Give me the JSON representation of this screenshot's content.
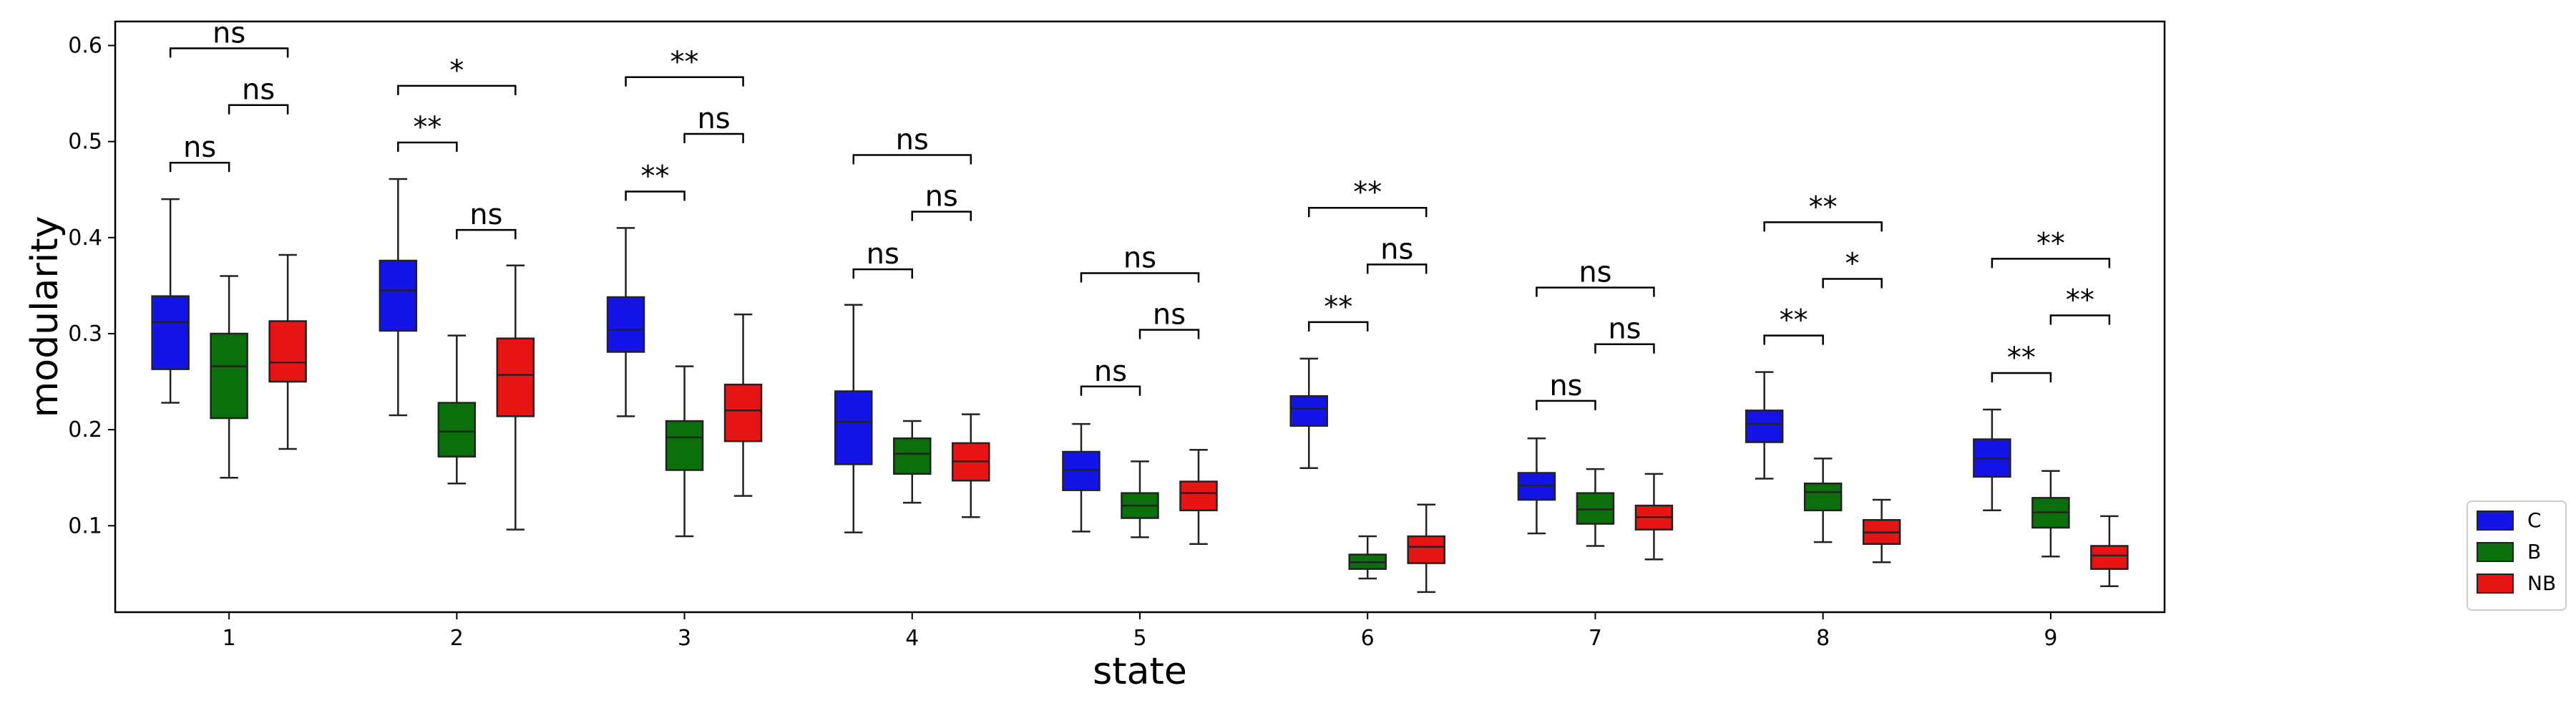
{
  "chart_data": {
    "type": "box",
    "xlabel": "state",
    "ylabel": "modularity",
    "categories": [
      "1",
      "2",
      "3",
      "4",
      "5",
      "6",
      "7",
      "8",
      "9"
    ],
    "ylim": [
      0.01,
      0.625
    ],
    "yticks": [
      "0.1",
      "0.2",
      "0.3",
      "0.4",
      "0.5",
      "0.6"
    ],
    "grid": false,
    "legend_position": "outside-lower-right",
    "series": [
      {
        "name": "C",
        "color": "#1414e6",
        "boxes": [
          {
            "min": 0.228,
            "q1": 0.263,
            "median": 0.312,
            "q3": 0.339,
            "max": 0.44
          },
          {
            "min": 0.215,
            "q1": 0.303,
            "median": 0.345,
            "q3": 0.376,
            "max": 0.461
          },
          {
            "min": 0.214,
            "q1": 0.281,
            "median": 0.304,
            "q3": 0.338,
            "max": 0.41
          },
          {
            "min": 0.093,
            "q1": 0.164,
            "median": 0.208,
            "q3": 0.24,
            "max": 0.33
          },
          {
            "min": 0.094,
            "q1": 0.137,
            "median": 0.158,
            "q3": 0.177,
            "max": 0.206
          },
          {
            "min": 0.16,
            "q1": 0.204,
            "median": 0.222,
            "q3": 0.235,
            "max": 0.274
          },
          {
            "min": 0.092,
            "q1": 0.127,
            "median": 0.142,
            "q3": 0.155,
            "max": 0.191
          },
          {
            "min": 0.149,
            "q1": 0.187,
            "median": 0.206,
            "q3": 0.22,
            "max": 0.26
          },
          {
            "min": 0.116,
            "q1": 0.151,
            "median": 0.17,
            "q3": 0.19,
            "max": 0.221
          }
        ]
      },
      {
        "name": "B",
        "color": "#0b700b",
        "boxes": [
          {
            "min": 0.15,
            "q1": 0.212,
            "median": 0.266,
            "q3": 0.3,
            "max": 0.36
          },
          {
            "min": 0.144,
            "q1": 0.172,
            "median": 0.198,
            "q3": 0.228,
            "max": 0.298
          },
          {
            "min": 0.089,
            "q1": 0.158,
            "median": 0.192,
            "q3": 0.209,
            "max": 0.266
          },
          {
            "min": 0.124,
            "q1": 0.154,
            "median": 0.175,
            "q3": 0.191,
            "max": 0.209
          },
          {
            "min": 0.088,
            "q1": 0.108,
            "median": 0.121,
            "q3": 0.134,
            "max": 0.167
          },
          {
            "min": 0.045,
            "q1": 0.055,
            "median": 0.062,
            "q3": 0.07,
            "max": 0.089
          },
          {
            "min": 0.079,
            "q1": 0.102,
            "median": 0.117,
            "q3": 0.134,
            "max": 0.159
          },
          {
            "min": 0.083,
            "q1": 0.116,
            "median": 0.135,
            "q3": 0.144,
            "max": 0.17
          },
          {
            "min": 0.068,
            "q1": 0.098,
            "median": 0.114,
            "q3": 0.129,
            "max": 0.157
          }
        ]
      },
      {
        "name": "NB",
        "color": "#e61414",
        "boxes": [
          {
            "min": 0.18,
            "q1": 0.25,
            "median": 0.27,
            "q3": 0.313,
            "max": 0.382
          },
          {
            "min": 0.096,
            "q1": 0.214,
            "median": 0.257,
            "q3": 0.295,
            "max": 0.371
          },
          {
            "min": 0.131,
            "q1": 0.188,
            "median": 0.22,
            "q3": 0.247,
            "max": 0.32
          },
          {
            "min": 0.109,
            "q1": 0.147,
            "median": 0.167,
            "q3": 0.186,
            "max": 0.216
          },
          {
            "min": 0.081,
            "q1": 0.116,
            "median": 0.134,
            "q3": 0.146,
            "max": 0.179
          },
          {
            "min": 0.031,
            "q1": 0.061,
            "median": 0.078,
            "q3": 0.089,
            "max": 0.122
          },
          {
            "min": 0.065,
            "q1": 0.096,
            "median": 0.109,
            "q3": 0.121,
            "max": 0.154
          },
          {
            "min": 0.062,
            "q1": 0.081,
            "median": 0.093,
            "q3": 0.106,
            "max": 0.127
          },
          {
            "min": 0.037,
            "q1": 0.055,
            "median": 0.069,
            "q3": 0.079,
            "max": 0.11
          }
        ]
      }
    ],
    "annotations": [
      {
        "state": 1,
        "from": "C",
        "to": "B",
        "y": 0.478,
        "label": "ns"
      },
      {
        "state": 1,
        "from": "B",
        "to": "NB",
        "y": 0.538,
        "label": "ns"
      },
      {
        "state": 1,
        "from": "C",
        "to": "NB",
        "y": 0.597,
        "label": "ns"
      },
      {
        "state": 2,
        "from": "C",
        "to": "B",
        "y": 0.499,
        "label": "**"
      },
      {
        "state": 2,
        "from": "B",
        "to": "NB",
        "y": 0.408,
        "label": "ns"
      },
      {
        "state": 2,
        "from": "C",
        "to": "NB",
        "y": 0.558,
        "label": "*"
      },
      {
        "state": 3,
        "from": "C",
        "to": "B",
        "y": 0.448,
        "label": "**"
      },
      {
        "state": 3,
        "from": "B",
        "to": "NB",
        "y": 0.508,
        "label": "ns"
      },
      {
        "state": 3,
        "from": "C",
        "to": "NB",
        "y": 0.567,
        "label": "**"
      },
      {
        "state": 4,
        "from": "C",
        "to": "B",
        "y": 0.367,
        "label": "ns"
      },
      {
        "state": 4,
        "from": "B",
        "to": "NB",
        "y": 0.427,
        "label": "ns"
      },
      {
        "state": 4,
        "from": "C",
        "to": "NB",
        "y": 0.486,
        "label": "ns"
      },
      {
        "state": 5,
        "from": "C",
        "to": "B",
        "y": 0.245,
        "label": "ns"
      },
      {
        "state": 5,
        "from": "B",
        "to": "NB",
        "y": 0.304,
        "label": "ns"
      },
      {
        "state": 5,
        "from": "C",
        "to": "NB",
        "y": 0.363,
        "label": "ns"
      },
      {
        "state": 6,
        "from": "C",
        "to": "B",
        "y": 0.312,
        "label": "**"
      },
      {
        "state": 6,
        "from": "B",
        "to": "NB",
        "y": 0.372,
        "label": "ns"
      },
      {
        "state": 6,
        "from": "C",
        "to": "NB",
        "y": 0.431,
        "label": "**"
      },
      {
        "state": 7,
        "from": "C",
        "to": "B",
        "y": 0.23,
        "label": "ns"
      },
      {
        "state": 7,
        "from": "B",
        "to": "NB",
        "y": 0.289,
        "label": "ns"
      },
      {
        "state": 7,
        "from": "C",
        "to": "NB",
        "y": 0.348,
        "label": "ns"
      },
      {
        "state": 8,
        "from": "C",
        "to": "B",
        "y": 0.298,
        "label": "**"
      },
      {
        "state": 8,
        "from": "B",
        "to": "NB",
        "y": 0.357,
        "label": "*"
      },
      {
        "state": 8,
        "from": "C",
        "to": "NB",
        "y": 0.416,
        "label": "**"
      },
      {
        "state": 9,
        "from": "C",
        "to": "B",
        "y": 0.259,
        "label": "**"
      },
      {
        "state": 9,
        "from": "B",
        "to": "NB",
        "y": 0.319,
        "label": "**"
      },
      {
        "state": 9,
        "from": "C",
        "to": "NB",
        "y": 0.378,
        "label": "**"
      }
    ]
  }
}
